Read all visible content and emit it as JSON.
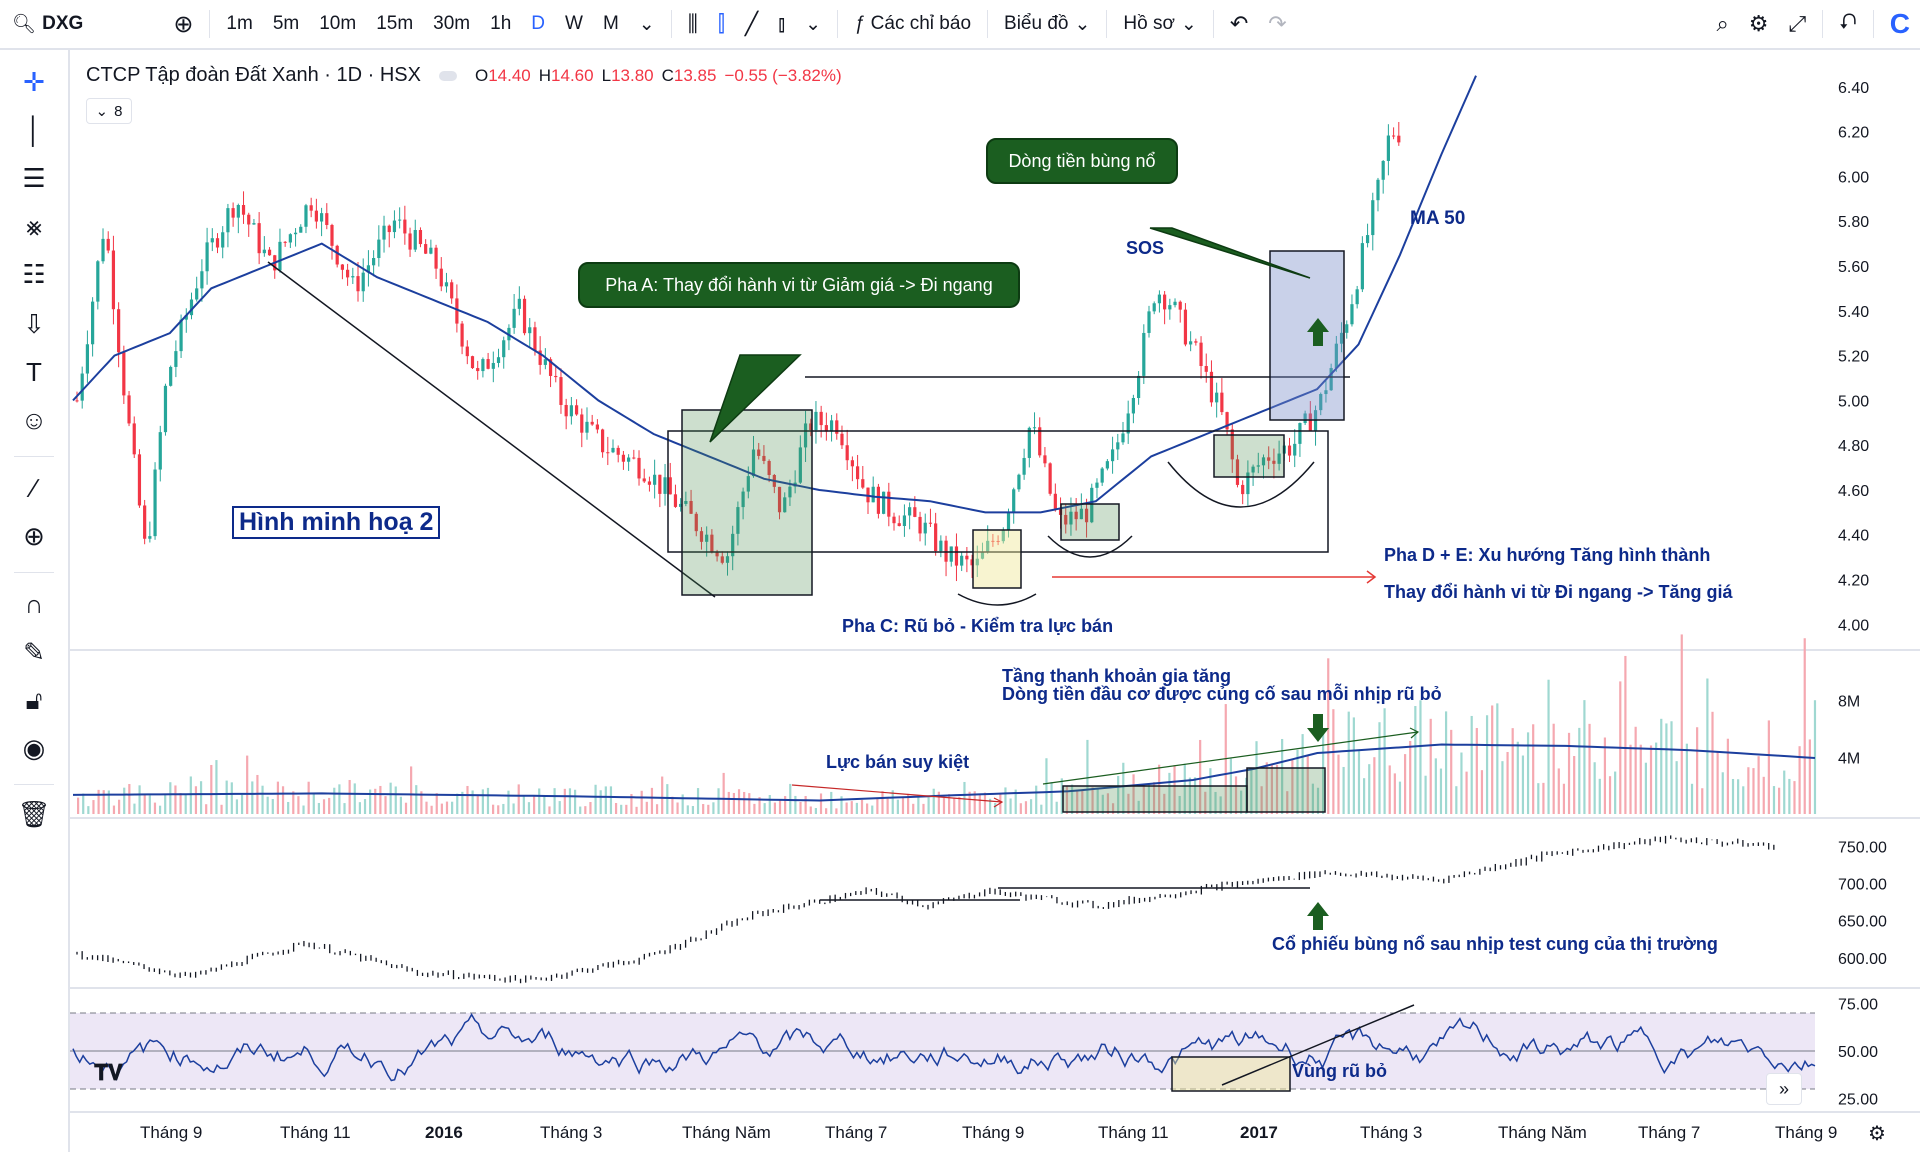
{
  "toolbar": {
    "symbol": "DXG",
    "intervals": [
      "1m",
      "5m",
      "10m",
      "15m",
      "30m",
      "1h",
      "D",
      "W",
      "M"
    ],
    "active_interval": "D",
    "indicators_label": "Các chỉ báo",
    "chart_label": "Biểu đồ",
    "profile_label": "Hồ sơ",
    "logo_letter": "C"
  },
  "legend": {
    "title": "CTCP Tập đoàn Đất Xanh · 1D · HSX",
    "o_label": "O",
    "o_value": "14.40",
    "h_label": "H",
    "h_value": "14.60",
    "l_label": "L",
    "l_value": "13.80",
    "c_label": "C",
    "c_value": "13.85",
    "change": "−0.55 (−3.82%)",
    "collapsed_count": "8"
  },
  "colors": {
    "up": "#26a69a",
    "down": "#f23645",
    "ma": "#1c3f9e",
    "callout_bg": "#1b5e20",
    "annotation": "#0d2a8a"
  },
  "callouts": {
    "phase_a": "Pha A: Thay đổi hành vi từ Giảm giá -> Đi ngang",
    "money_flow": "Dòng tiền bùng nổ"
  },
  "annotations": {
    "sos": "SOS",
    "ma50": "MA 50",
    "illustration": "Hình minh hoạ 2",
    "phase_c": "Pha C: Rũ bỏ - Kiểm tra lực bán",
    "phase_de_1": "Pha D + E: Xu hướng Tăng hình thành",
    "phase_de_2": "Thay đổi hành vi từ Đi ngang -> Tăng giá",
    "volume_1": "Tầng thanh khoản gia tăng",
    "volume_2": "Dòng tiền đầu cơ được củng cố sau mỗi nhịp rũ bỏ",
    "selling_exhausted": "Lực bán suy kiệt",
    "index_note": "Cổ phiếu bùng nổ sau nhịp test cung của thị trường",
    "shakeout_zone": "Vùng rũ bỏ"
  },
  "chart_data": [
    {
      "type": "candlestick",
      "title": "CTCP Tập đoàn Đất Xanh · 1D · HSX",
      "y_ticks": [
        "4.00",
        "4.20",
        "4.40",
        "4.60",
        "4.80",
        "5.00",
        "5.20",
        "5.40",
        "5.60",
        "5.80",
        "6.00",
        "6.20",
        "6.40"
      ],
      "ylim": [
        3.93,
        6.52
      ],
      "x_ticks": [
        "Tháng 9",
        "Tháng 11",
        "2016",
        "Tháng 3",
        "Tháng Năm",
        "Tháng 7",
        "Tháng 9",
        "Tháng 11",
        "2017",
        "Tháng 3",
        "Tháng Năm",
        "Tháng 7",
        "Tháng 9"
      ],
      "price_path": [
        [
          0,
          5.0
        ],
        [
          4,
          5.8
        ],
        [
          7,
          5.0
        ],
        [
          10,
          4.3
        ],
        [
          13,
          5.1
        ],
        [
          18,
          5.6
        ],
        [
          23,
          5.9
        ],
        [
          28,
          5.6
        ],
        [
          34,
          5.9
        ],
        [
          40,
          5.5
        ],
        [
          46,
          5.8
        ],
        [
          52,
          5.6
        ],
        [
          58,
          5.1
        ],
        [
          64,
          5.4
        ],
        [
          70,
          5.0
        ],
        [
          76,
          4.8
        ],
        [
          82,
          4.7
        ],
        [
          88,
          4.5
        ],
        [
          94,
          4.3
        ],
        [
          98,
          4.8
        ],
        [
          102,
          4.5
        ],
        [
          106,
          4.9
        ],
        [
          110,
          4.9
        ],
        [
          114,
          4.6
        ],
        [
          118,
          4.5
        ],
        [
          122,
          4.45
        ],
        [
          126,
          4.3
        ],
        [
          130,
          4.25
        ],
        [
          134,
          4.45
        ],
        [
          138,
          4.9
        ],
        [
          142,
          4.45
        ],
        [
          146,
          4.5
        ],
        [
          150,
          4.75
        ],
        [
          154,
          5.2
        ],
        [
          156,
          5.5
        ],
        [
          158,
          5.45
        ],
        [
          162,
          5.2
        ],
        [
          166,
          4.9
        ],
        [
          168,
          4.6
        ],
        [
          172,
          4.75
        ],
        [
          176,
          4.8
        ],
        [
          180,
          5.0
        ],
        [
          184,
          5.4
        ],
        [
          188,
          5.9
        ],
        [
          190,
          6.2
        ],
        [
          192,
          6.2
        ]
      ],
      "ma50_path": [
        [
          0,
          5.0
        ],
        [
          6,
          5.2
        ],
        [
          14,
          5.3
        ],
        [
          20,
          5.5
        ],
        [
          28,
          5.6
        ],
        [
          36,
          5.7
        ],
        [
          44,
          5.55
        ],
        [
          52,
          5.45
        ],
        [
          60,
          5.35
        ],
        [
          68,
          5.2
        ],
        [
          76,
          5.0
        ],
        [
          84,
          4.85
        ],
        [
          92,
          4.75
        ],
        [
          100,
          4.65
        ],
        [
          108,
          4.6
        ],
        [
          116,
          4.57
        ],
        [
          124,
          4.55
        ],
        [
          132,
          4.5
        ],
        [
          140,
          4.5
        ],
        [
          148,
          4.55
        ],
        [
          156,
          4.75
        ],
        [
          164,
          4.85
        ],
        [
          172,
          4.95
        ],
        [
          180,
          5.05
        ],
        [
          186,
          5.25
        ],
        [
          192,
          5.65
        ],
        [
          198,
          6.1
        ],
        [
          203,
          6.45
        ]
      ]
    },
    {
      "type": "bar",
      "name": "volume",
      "y_ticks": [
        "4M",
        "8M"
      ],
      "volume_ma_path": [
        [
          0,
          1.35
        ],
        [
          40,
          1.45
        ],
        [
          80,
          1.25
        ],
        [
          120,
          0.95
        ],
        [
          140,
          1.3
        ],
        [
          160,
          1.6
        ],
        [
          180,
          2.4
        ],
        [
          190,
          3.2
        ],
        [
          200,
          4.3
        ],
        [
          220,
          4.9
        ],
        [
          240,
          4.8
        ],
        [
          260,
          4.5
        ],
        [
          280,
          3.95
        ]
      ]
    },
    {
      "type": "candlestick",
      "name": "index",
      "y_ticks": [
        "600.00",
        "650.00",
        "700.00",
        "750.00"
      ],
      "index_path": [
        [
          0,
          605
        ],
        [
          20,
          575
        ],
        [
          40,
          620
        ],
        [
          60,
          580
        ],
        [
          80,
          570
        ],
        [
          100,
          600
        ],
        [
          120,
          660
        ],
        [
          140,
          690
        ],
        [
          150,
          670
        ],
        [
          160,
          690
        ],
        [
          180,
          670
        ],
        [
          200,
          695
        ],
        [
          220,
          715
        ],
        [
          240,
          705
        ],
        [
          260,
          740
        ],
        [
          280,
          760
        ],
        [
          300,
          750
        ]
      ]
    },
    {
      "type": "line",
      "name": "RSI",
      "y_ticks": [
        "25.00",
        "50.00",
        "75.00"
      ],
      "bands": [
        30,
        70
      ],
      "ylim": [
        20,
        80
      ]
    }
  ]
}
